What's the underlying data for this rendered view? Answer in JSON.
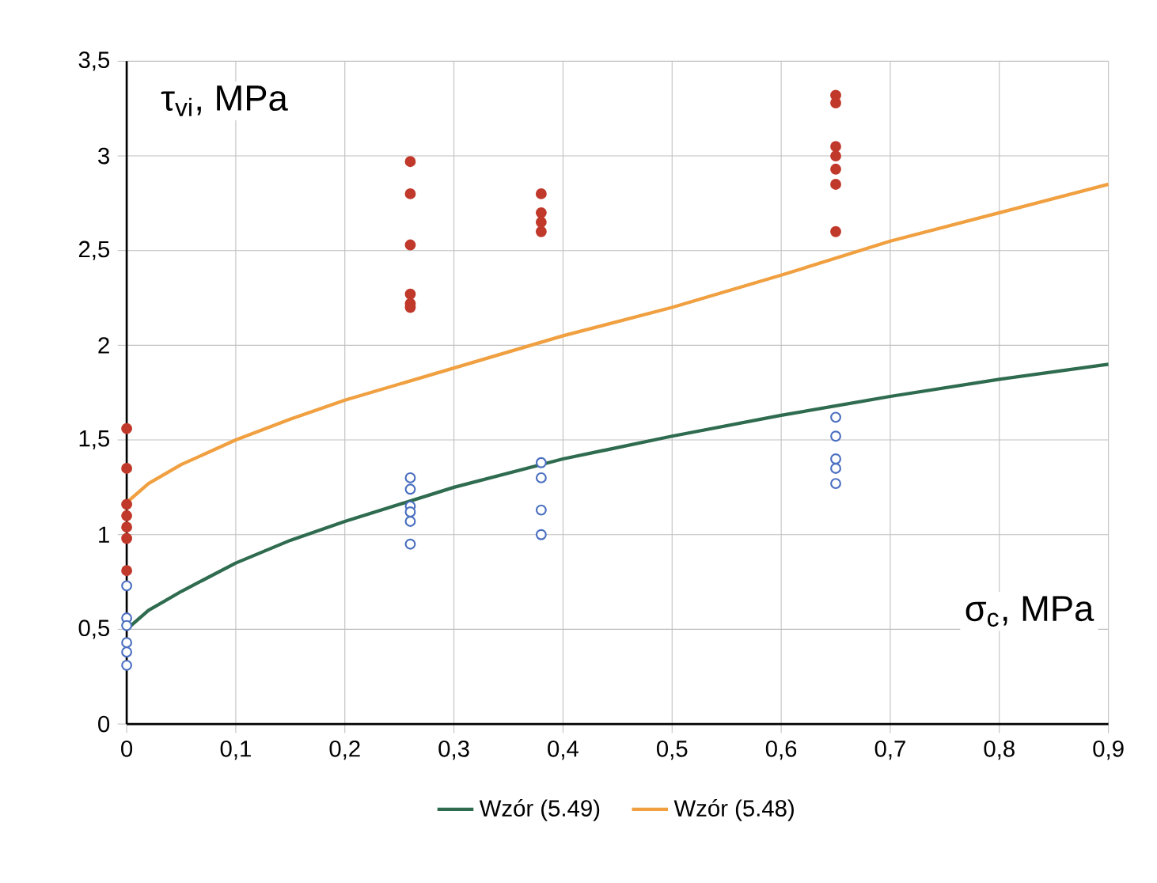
{
  "chart_data": {
    "type": "scatter",
    "xlabel": "σ$_{c}$, MPa",
    "ylabel": "τ$_{vi}$, MPa",
    "series": [
      {
        "color": "#c0392b",
        "marker": "circle",
        "x": [
          0,
          0,
          0,
          0,
          0,
          0,
          0,
          0.26,
          0.26,
          0.26,
          0.26,
          0.26,
          0.26,
          0.38,
          0.38,
          0.38,
          0.38,
          0.65,
          0.65,
          0.65,
          0.65,
          0.65,
          0.65,
          0.65
        ],
        "values": [
          1.56,
          1.35,
          1.16,
          1.1,
          1.04,
          0.98,
          0.81,
          2.97,
          2.8,
          2.53,
          2.27,
          2.22,
          2.2,
          2.8,
          2.7,
          2.65,
          2.6,
          3.32,
          3.28,
          3.05,
          3,
          2.93,
          2.85,
          2.6
        ]
      },
      {
        "color": "#4a6fc0",
        "marker": "circle",
        "x": [
          0,
          0,
          0,
          0,
          0,
          0,
          0.26,
          0.26,
          0.26,
          0.26,
          0.26,
          0.26,
          0.38,
          0.38,
          0.38,
          0.38,
          0.65,
          0.65,
          0.65,
          0.65,
          0.65
        ],
        "values": [
          0.73,
          0.56,
          0.52,
          0.43,
          0.38,
          0.31,
          1.3,
          1.24,
          1.15,
          1.12,
          1.07,
          0.95,
          1.38,
          1.3,
          1.13,
          1,
          1.62,
          1.52,
          1.4,
          1.35,
          1.27
        ]
      },
      {
        "type": "line",
        "name": "Wzór (5.49)",
        "marker": "none",
        "color": "#2e6b4f",
        "x": [
          0,
          0.02,
          0.05,
          0.1,
          0.15,
          0.2,
          0.3,
          0.4,
          0.5,
          0.6,
          0.7,
          0.8,
          0.9
        ],
        "values": [
          0.5,
          0.6,
          0.7,
          0.85,
          0.97,
          1.07,
          1.25,
          1.4,
          1.52,
          1.63,
          1.73,
          1.82,
          1.9
        ]
      },
      {
        "type": "line",
        "name": "Wzór (5.48)",
        "marker": "none",
        "color": "#f0a040",
        "x": [
          0,
          0.02,
          0.05,
          0.1,
          0.15,
          0.2,
          0.3,
          0.4,
          0.5,
          0.6,
          0.7,
          0.8,
          0.9
        ],
        "values": [
          1.17,
          1.27,
          1.37,
          1.5,
          1.61,
          1.71,
          1.88,
          2.05,
          2.2,
          2.37,
          2.55,
          2.7,
          2.85
        ]
      }
    ],
    "xlim": [
      0,
      0.9
    ],
    "ylim": [
      0,
      3.5
    ],
    "xticks": [
      0,
      {
        "value": 0.1,
        "label": "0,1"
      },
      {
        "value": 0.2,
        "label": "0,2"
      },
      {
        "value": 0.3,
        "label": "0,3"
      },
      {
        "value": 0.4,
        "label": "0,4"
      },
      {
        "value": 0.5,
        "label": "0,5"
      },
      {
        "value": 0.6,
        "label": "0,6"
      },
      {
        "value": 0.7,
        "label": "0,7"
      },
      {
        "value": 0.8,
        "label": "0,8"
      },
      {
        "value": 0.9,
        "label": "0,9"
      }
    ],
    "yticks": [
      0,
      {
        "value": 0.5,
        "label": "0,5"
      },
      1,
      {
        "value": 1.5,
        "label": "1,5"
      },
      2,
      {
        "value": 2.5,
        "label": "2,5"
      },
      3,
      {
        "value": 3.5,
        "label": "3,5"
      }
    ],
    "grid": true,
    "legend": "bottom"
  }
}
